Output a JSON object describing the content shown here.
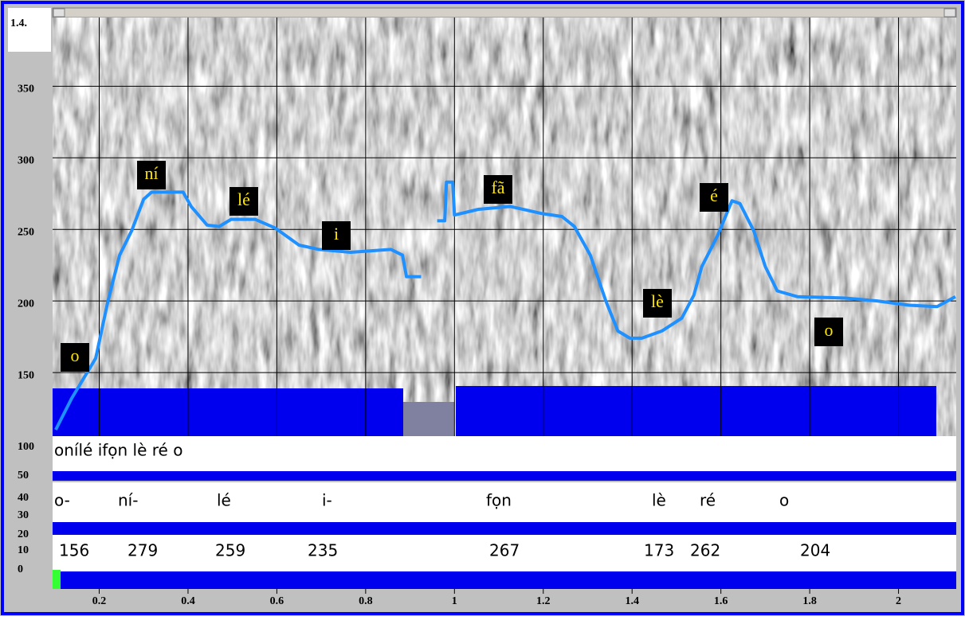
{
  "chart_data": {
    "type": "line",
    "corner_label": "1.4.",
    "x": [
      0.102,
      0.138,
      0.192,
      0.219,
      0.246,
      0.273,
      0.3,
      0.318,
      0.389,
      0.407,
      0.443,
      0.47,
      0.497,
      0.551,
      0.596,
      0.65,
      0.695,
      0.766,
      0.857,
      0.883,
      0.892,
      0.925,
      0.94,
      0.961,
      0.978,
      0.982,
      0.996,
      1.0,
      1.054,
      1.126,
      1.198,
      1.242,
      1.27,
      1.306,
      1.342,
      1.368,
      1.395,
      1.422,
      1.467,
      1.512,
      1.539,
      1.557,
      1.593,
      1.625,
      1.643,
      1.674,
      1.7,
      1.727,
      1.772,
      1.88,
      1.952,
      2.024,
      2.087,
      2.128
    ],
    "values": [
      110,
      132,
      160,
      199,
      232,
      249,
      271,
      276,
      276,
      266,
      253,
      252,
      257,
      257,
      251,
      239,
      236,
      234,
      236,
      232,
      217,
      217,
      null,
      256,
      256,
      283,
      283,
      260,
      264,
      266,
      261,
      259,
      252,
      232,
      199,
      179,
      174,
      174,
      179,
      188,
      204,
      224,
      246,
      270,
      268,
      249,
      224,
      207,
      203,
      202,
      200,
      197,
      196,
      203
    ],
    "color": "#1e90ff",
    "xlim": [
      0.095,
      2.13
    ],
    "ylim": [
      100,
      398
    ],
    "xticks": [
      0.2,
      0.4,
      0.6,
      0.8,
      1,
      1.2,
      1.4,
      1.6,
      1.8,
      2
    ],
    "yticks": [
      100,
      150,
      200,
      250,
      300,
      350
    ],
    "grid": true,
    "lower_scale_labels": [
      50,
      40,
      30,
      20,
      10,
      0
    ],
    "annotations": [
      "o",
      "ní",
      "lé",
      "i",
      "fã",
      "lè",
      "é",
      "o"
    ],
    "transcription": "onílé ifọn lè ré o",
    "syllables": [
      "o-",
      "ní-",
      "lé",
      "i-",
      "fọn",
      "lè",
      "ré",
      "o"
    ],
    "syllable_pitches": [
      156,
      279,
      259,
      235,
      267,
      173,
      262,
      204
    ]
  }
}
